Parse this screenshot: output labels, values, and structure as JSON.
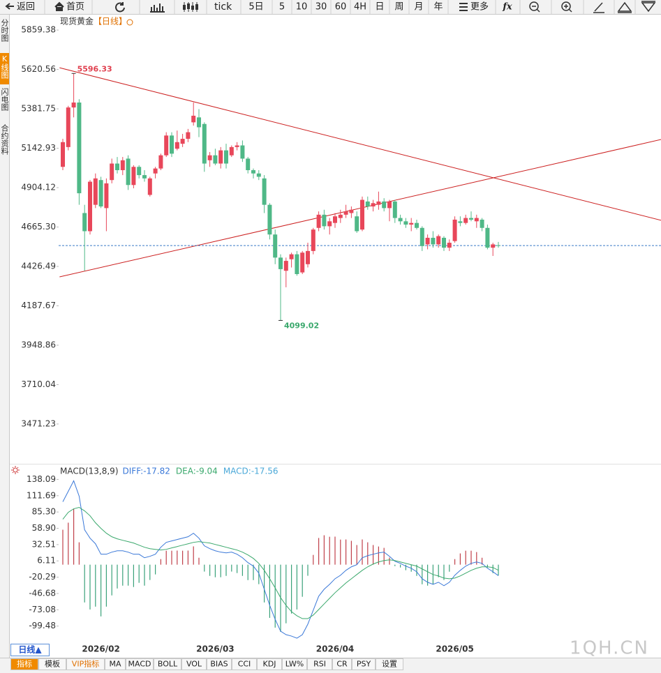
{
  "toolbar": [
    "返回",
    "首页",
    "tick",
    "5日",
    "5",
    "10",
    "30",
    "60",
    "4H",
    "日",
    "周",
    "月",
    "年",
    "更多",
    "fx"
  ],
  "side_tabs": [
    "分时图",
    "K线图",
    "闪电图",
    "合约资料"
  ],
  "period_button": "日线▲",
  "indicator_tabs": [
    "指标",
    "模板",
    "VIP指标",
    "MA",
    "MACD",
    "BOLL",
    "VOL",
    "BIAS",
    "CCI",
    "KDJ",
    "LW%",
    "RSI",
    "CR",
    "PSY",
    "设置"
  ],
  "watermark": "1QH.CN",
  "chart_data": [
    {
      "type": "candlestick",
      "title": "现货黄金",
      "subtitle": "【日线】",
      "categories": [
        null,
        null,
        null,
        null,
        null,
        null,
        null,
        "2026/02",
        null,
        null,
        null,
        null,
        null,
        null,
        null,
        null,
        null,
        null,
        null,
        null,
        null,
        null,
        null,
        null,
        null,
        null,
        null,
        null,
        "2026/03",
        null,
        null,
        null,
        null,
        null,
        null,
        null,
        null,
        null,
        null,
        null,
        null,
        null,
        null,
        null,
        null,
        null,
        null,
        null,
        null,
        null,
        "2026/04",
        null,
        null,
        null,
        null,
        null,
        null,
        null,
        null,
        null,
        null,
        null,
        null,
        null,
        null,
        null,
        null,
        null,
        null,
        null,
        null,
        null,
        "2026/05",
        null,
        null,
        null,
        null,
        null,
        null,
        null,
        null
      ],
      "open": [
        5030,
        5150,
        5390,
        5420,
        4750,
        4640,
        4800,
        4950,
        4780,
        4950,
        5050,
        5010,
        5080,
        4920,
        5030,
        4980,
        4860,
        4990,
        5020,
        5100,
        5220,
        5140,
        5170,
        5200,
        5300,
        5330,
        5290,
        5070,
        5100,
        5050,
        5130,
        5100,
        5150,
        5160,
        5080,
        5010,
        4990,
        4960,
        4800,
        4620,
        4480,
        4400,
        4470,
        4500,
        4390,
        4440,
        4520,
        4660,
        4740,
        4670,
        4690,
        4720,
        4740,
        4750,
        4730,
        4650,
        4820,
        4790,
        4800,
        4820,
        4780,
        4820,
        4720,
        4700,
        4680,
        4690,
        4660,
        4560,
        4600,
        4560,
        4600,
        4540,
        4580,
        4700,
        4690,
        4720,
        4700,
        4710,
        4660,
        4540,
        4555
      ],
      "high": [
        5200,
        5400,
        5596.33,
        5440,
        4800,
        4950,
        4990,
        4970,
        4960,
        5080,
        5090,
        5090,
        5100,
        5040,
        5040,
        5010,
        4970,
        5030,
        5110,
        5240,
        5240,
        5250,
        5230,
        5260,
        5420,
        5380,
        5300,
        5120,
        5140,
        5150,
        5170,
        5160,
        5180,
        5190,
        5090,
        5020,
        5010,
        4980,
        4810,
        4650,
        4500,
        4480,
        4510,
        4520,
        4520,
        4570,
        4660,
        4760,
        4770,
        4720,
        4750,
        4770,
        4800,
        4790,
        4760,
        4850,
        4850,
        4830,
        4880,
        4840,
        4830,
        4830,
        4740,
        4720,
        4720,
        4710,
        4670,
        4620,
        4640,
        4620,
        4610,
        4590,
        4730,
        4730,
        4740,
        4760,
        4740,
        4720,
        4680,
        4570,
        4575
      ],
      "low": [
        5010,
        5130,
        5330,
        4800,
        4400,
        4620,
        4780,
        4780,
        4640,
        4930,
        4990,
        4980,
        4890,
        4900,
        4960,
        4940,
        4850,
        4960,
        5010,
        5090,
        5090,
        5130,
        5150,
        5180,
        5280,
        5210,
        5000,
        5030,
        5040,
        5020,
        5020,
        5090,
        5130,
        5060,
        4990,
        4960,
        4950,
        4750,
        4590,
        4440,
        4099.02,
        4300,
        4420,
        4370,
        4380,
        4420,
        4500,
        4640,
        4650,
        4620,
        4660,
        4690,
        4720,
        4720,
        4630,
        4640,
        4770,
        4760,
        4770,
        4760,
        4700,
        4690,
        4680,
        4660,
        4640,
        4650,
        4520,
        4530,
        4540,
        4540,
        4520,
        4520,
        4570,
        4670,
        4680,
        4700,
        4660,
        4640,
        4530,
        4490,
        4540
      ],
      "close": [
        5180,
        5390,
        5420,
        4870,
        4640,
        4940,
        4960,
        4790,
        4930,
        5050,
        5010,
        5070,
        4920,
        5030,
        4980,
        4960,
        4960,
        5020,
        5100,
        5220,
        5110,
        5180,
        5200,
        5240,
        5340,
        5270,
        5050,
        5100,
        5050,
        5130,
        5050,
        5150,
        5160,
        5080,
        5010,
        4990,
        4970,
        4800,
        4620,
        4480,
        4410,
        4460,
        4500,
        4380,
        4510,
        4520,
        4650,
        4740,
        4670,
        4700,
        4730,
        4740,
        4760,
        4770,
        4640,
        4830,
        4790,
        4810,
        4820,
        4780,
        4820,
        4720,
        4700,
        4680,
        4690,
        4660,
        4550,
        4600,
        4560,
        4610,
        4540,
        4570,
        4710,
        4690,
        4720,
        4710,
        4720,
        4660,
        4540,
        4560,
        4553
      ],
      "up_color": "#e8475a",
      "down_color": "#4fb887",
      "high_label_color": "#e0404f",
      "low_label_color": "#3aa86c",
      "price_line_color": "#3a7bc8",
      "trend_lines": [
        {
          "color": "#cc1f1f",
          "x": [
            -0.6,
            109.9
          ],
          "values": [
            5631,
            4706
          ]
        },
        {
          "color": "#cc1f1f",
          "x": [
            -0.6,
            109.9
          ],
          "values": [
            4363,
            5196
          ]
        }
      ],
      "ylim": [
        3230,
        5957
      ],
      "yticks": [
        5859.38,
        5620.56,
        5381.75,
        5142.93,
        4904.12,
        {
          "value": 4665.3,
          "label": "4665.30"
        },
        4426.49,
        4187.67,
        3948.86,
        3710.04,
        3471.23
      ],
      "grid": false
    },
    {
      "type": "macd",
      "title": "MACD(13,8,9)",
      "series": [
        {
          "name": "DIFF:-17.82",
          "type": "line",
          "color": "#3a78d8",
          "values": [
            101.8,
            118.8,
            135.8,
            110.9,
            56.5,
            42.9,
            33.8,
            16.9,
            16.9,
            20.3,
            22.5,
            22.5,
            20.3,
            16.9,
            16.9,
            11.2,
            13.5,
            16.9,
            28.2,
            36.1,
            38.4,
            40.7,
            42.9,
            45.2,
            50.9,
            42.9,
            30.5,
            25.9,
            22.5,
            20.3,
            19.1,
            20.3,
            16.9,
            11.2,
            3.3,
            -2.4,
            -13.7,
            -39.8,
            -65.9,
            -88.5,
            -107.8,
            -113.4,
            -115.7,
            -119.1,
            -113.4,
            -96.4,
            -73.8,
            -51.1,
            -39.8,
            -31.9,
            -22.8,
            -17.2,
            -9.2,
            -3.5,
            -0.1,
            11.2,
            14.6,
            16.9,
            19.1,
            20.3,
            13.5,
            5.5,
            2.1,
            -2.4,
            -5.8,
            -11.5,
            -22.8,
            -28.5,
            -31.9,
            -28.5,
            -34.1,
            -28.5,
            -17.2,
            -9.2,
            -2.4,
            2.1,
            4.4,
            2.1,
            -5.8,
            -11.5,
            -17.82
          ]
        },
        {
          "name": "DEA:-9.04",
          "type": "line",
          "color": "#3aa86c",
          "values": [
            73.5,
            84.8,
            90.5,
            92.8,
            87.1,
            79.2,
            67.8,
            58.8,
            50.9,
            45.2,
            41.8,
            39.5,
            37.3,
            35.0,
            31.6,
            28.2,
            25.9,
            24.8,
            23.7,
            24.8,
            27.1,
            29.3,
            31.6,
            33.8,
            36.1,
            37.3,
            36.1,
            35.0,
            32.7,
            30.5,
            28.2,
            25.9,
            23.7,
            20.3,
            15.8,
            10.1,
            2.1,
            -9.2,
            -22.8,
            -37.5,
            -53.4,
            -65.9,
            -76.1,
            -82.8,
            -87.4,
            -87.4,
            -81.7,
            -72.7,
            -63.6,
            -54.5,
            -45.5,
            -37.5,
            -29.6,
            -22.8,
            -16.0,
            -9.2,
            -3.5,
            1.0,
            4.4,
            6.7,
            7.8,
            6.7,
            4.4,
            2.1,
            -0.1,
            -2.4,
            -6.9,
            -11.5,
            -16.0,
            -18.3,
            -21.7,
            -22.8,
            -21.7,
            -18.3,
            -13.7,
            -9.2,
            -5.8,
            -3.5,
            -3.5,
            -4.6,
            -9.04
          ]
        },
        {
          "name": "MACD:-17.56",
          "type": "bar",
          "color": "#4aa8d8",
          "positive_color": "#c0404a",
          "negative_color": "#3aa27a",
          "values": [
            56.6,
            68.0,
            90.6,
            36.2,
            -61.2,
            -72.6,
            -68.0,
            -83.8,
            -68.0,
            -49.8,
            -38.6,
            -34.0,
            -34.0,
            -36.2,
            -29.4,
            -34.0,
            -24.8,
            -15.8,
            9.0,
            22.6,
            22.6,
            22.8,
            22.6,
            22.8,
            29.6,
            11.2,
            -11.2,
            -18.2,
            -20.4,
            -20.4,
            -18.2,
            -11.2,
            -13.6,
            -18.2,
            -25.0,
            -25.0,
            -31.6,
            -61.2,
            -86.2,
            -102.0,
            -108.8,
            -95.0,
            -79.2,
            -72.6,
            -52.0,
            -18.0,
            15.8,
            43.2,
            47.6,
            45.2,
            45.4,
            40.6,
            40.8,
            38.6,
            31.8,
            40.8,
            36.2,
            31.8,
            29.4,
            27.2,
            11.4,
            -2.4,
            -4.6,
            -9.0,
            -11.4,
            -18.2,
            -31.8,
            -34.0,
            -31.8,
            -20.4,
            -24.8,
            -11.4,
            9.0,
            18.2,
            22.6,
            22.6,
            20.4,
            11.2,
            -4.6,
            -13.8,
            -17.56
          ]
        }
      ],
      "ylim": [
        -119,
        160
      ],
      "yticks": [
        138.09,
        111.69,
        {
          "value": 85.3,
          "label": "85.30"
        },
        {
          "value": 58.9,
          "label": "58.90"
        },
        32.51,
        6.11,
        -20.29,
        -46.68,
        -73.08,
        -99.48
      ],
      "grid": false
    }
  ]
}
